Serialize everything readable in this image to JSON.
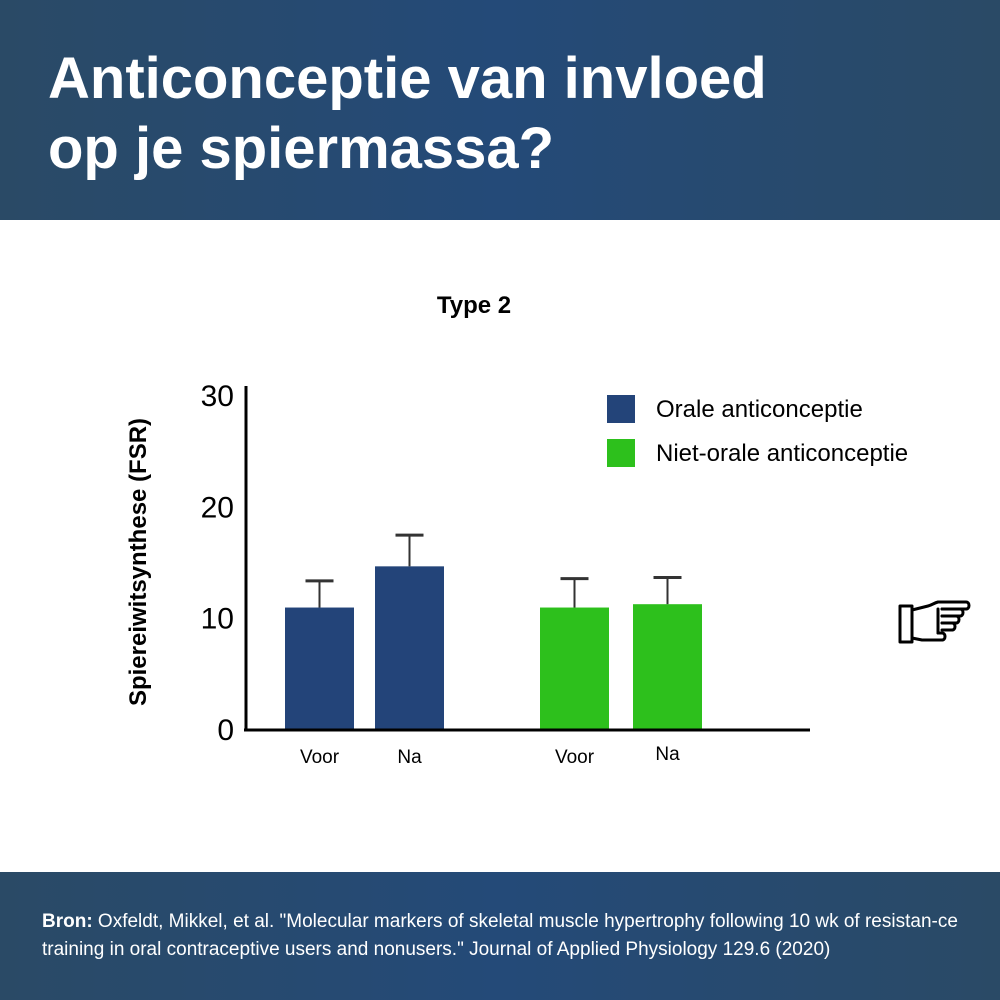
{
  "header": {
    "title_line1": "Anticonceptie van invloed",
    "title_line2": "op je spiermassa?"
  },
  "chart_data": {
    "type": "bar",
    "title": "Type 2",
    "ylabel": "Spiereiwitsynthese (FSR)",
    "xlabel": "",
    "ylim": [
      0,
      30
    ],
    "yticks": [
      0,
      10,
      20,
      30
    ],
    "groups": [
      {
        "series": "Orale anticonceptie",
        "bars": [
          {
            "label": "Voor",
            "value": 11,
            "error": 2.4
          },
          {
            "label": "Na",
            "value": 14.7,
            "error": 2.8
          }
        ]
      },
      {
        "series": "Niet-orale anticonceptie",
        "bars": [
          {
            "label": "Voor",
            "value": 11,
            "error": 2.6
          },
          {
            "label": "Na",
            "value": 11.3,
            "error": 2.4
          }
        ]
      }
    ],
    "series": [
      {
        "name": "Orale anticonceptie",
        "color": "#234479"
      },
      {
        "name": "Niet-orale anticonceptie",
        "color": "#2dc01c"
      }
    ],
    "legend_position": "top-right",
    "grid": false
  },
  "decor": {
    "pointer_icon": "pointing-hand-right-icon"
  },
  "footer": {
    "source_label": "Bron:",
    "source_text": " Oxfeldt, Mikkel, et al. \"Molecular markers of skeletal muscle hypertrophy following 10 wk of resistan-ce training in oral contraceptive users and nonusers.\" Journal of Applied Physiology 129.6 (2020)"
  }
}
